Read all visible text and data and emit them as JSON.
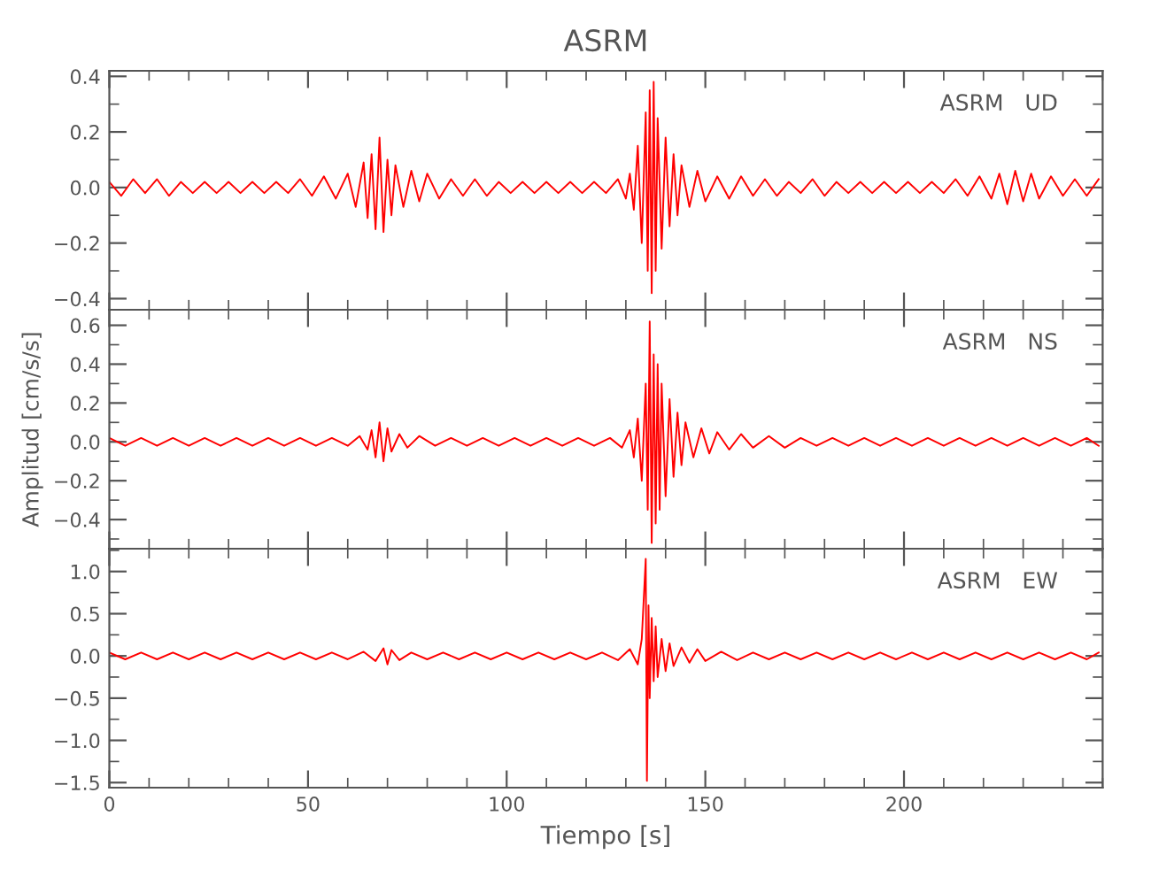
{
  "chart_data": [
    {
      "type": "line",
      "title": "ASRM",
      "annotations": [
        "ASRM   UD"
      ],
      "xlim": [
        0,
        250
      ],
      "xticks": [
        0,
        50,
        100,
        150,
        200
      ],
      "ylim": [
        -0.44,
        0.42
      ],
      "yticks": [
        -0.4,
        -0.2,
        {
          "value": 0,
          "label": "0.0"
        },
        0.2,
        0.4
      ],
      "tick_labels": "y",
      "series": [
        {
          "color": "#ff0000",
          "x": [
            0,
            3,
            6,
            9,
            12,
            15,
            18,
            21,
            24,
            27,
            30,
            33,
            36,
            39,
            42,
            45,
            48,
            51,
            54,
            57,
            60,
            62,
            64,
            65,
            66,
            67,
            68,
            69,
            70,
            71,
            72,
            74,
            76,
            78,
            80,
            83,
            86,
            89,
            92,
            95,
            98,
            101,
            104,
            107,
            110,
            113,
            116,
            119,
            122,
            125,
            128,
            130,
            131,
            132,
            133,
            134,
            135,
            135.5,
            136,
            136.5,
            137,
            137.5,
            138,
            139,
            140,
            141,
            142,
            143,
            144,
            146,
            148,
            150,
            153,
            156,
            159,
            162,
            165,
            168,
            171,
            174,
            177,
            180,
            183,
            186,
            189,
            192,
            195,
            198,
            201,
            204,
            207,
            210,
            213,
            216,
            219,
            222,
            224,
            226,
            228,
            230,
            232,
            234,
            237,
            240,
            243,
            246,
            249
          ],
          "values": [
            0.02,
            -0.03,
            0.03,
            -0.02,
            0.03,
            -0.03,
            0.02,
            -0.02,
            0.02,
            -0.02,
            0.02,
            -0.02,
            0.02,
            -0.02,
            0.02,
            -0.02,
            0.03,
            -0.03,
            0.04,
            -0.04,
            0.05,
            -0.07,
            0.09,
            -0.11,
            0.12,
            -0.15,
            0.18,
            -0.16,
            0.1,
            -0.1,
            0.08,
            -0.07,
            0.06,
            -0.05,
            0.05,
            -0.04,
            0.03,
            -0.03,
            0.03,
            -0.03,
            0.02,
            -0.02,
            0.02,
            -0.02,
            0.02,
            -0.02,
            0.02,
            -0.02,
            0.02,
            -0.02,
            0.03,
            -0.04,
            0.05,
            -0.08,
            0.15,
            -0.2,
            0.27,
            -0.3,
            0.35,
            -0.38,
            0.38,
            -0.3,
            0.25,
            -0.22,
            0.18,
            -0.14,
            0.12,
            -0.1,
            0.08,
            -0.07,
            0.06,
            -0.05,
            0.04,
            -0.04,
            0.04,
            -0.03,
            0.03,
            -0.03,
            0.02,
            -0.02,
            0.03,
            -0.03,
            0.02,
            -0.02,
            0.02,
            -0.02,
            0.02,
            -0.02,
            0.02,
            -0.02,
            0.02,
            -0.02,
            0.03,
            -0.03,
            0.04,
            -0.04,
            0.05,
            -0.06,
            0.06,
            -0.05,
            0.05,
            -0.04,
            0.04,
            -0.03,
            0.03,
            -0.03,
            0.03
          ]
        }
      ]
    },
    {
      "type": "line",
      "ylabel": "Amplitud [cm/s/s]",
      "annotations": [
        "ASRM   NS"
      ],
      "xlim": [
        0,
        250
      ],
      "xticks": [
        0,
        50,
        100,
        150,
        200
      ],
      "ylim": [
        -0.55,
        0.68
      ],
      "yticks": [
        -0.4,
        -0.2,
        {
          "value": 0,
          "label": "0.0"
        },
        0.2,
        0.4,
        0.6
      ],
      "tick_labels": "y",
      "series": [
        {
          "color": "#ff0000",
          "x": [
            0,
            4,
            8,
            12,
            16,
            20,
            24,
            28,
            32,
            36,
            40,
            44,
            48,
            52,
            56,
            60,
            63,
            65,
            66,
            67,
            68,
            69,
            70,
            71,
            73,
            75,
            78,
            82,
            86,
            90,
            94,
            98,
            102,
            106,
            110,
            114,
            118,
            122,
            126,
            129,
            131,
            132,
            133,
            134,
            135,
            135.5,
            136,
            136.5,
            137,
            137.5,
            138,
            138.5,
            139,
            140,
            141,
            142,
            143,
            144,
            145,
            147,
            149,
            151,
            153,
            156,
            159,
            162,
            166,
            170,
            174,
            178,
            182,
            186,
            190,
            194,
            198,
            202,
            206,
            210,
            214,
            218,
            222,
            226,
            230,
            234,
            238,
            242,
            246,
            249
          ],
          "values": [
            0.02,
            -0.02,
            0.02,
            -0.02,
            0.02,
            -0.02,
            0.02,
            -0.02,
            0.02,
            -0.02,
            0.02,
            -0.02,
            0.02,
            -0.02,
            0.02,
            -0.02,
            0.03,
            -0.04,
            0.06,
            -0.08,
            0.1,
            -0.1,
            0.07,
            -0.05,
            0.04,
            -0.03,
            0.03,
            -0.02,
            0.02,
            -0.02,
            0.02,
            -0.02,
            0.02,
            -0.02,
            0.02,
            -0.02,
            0.02,
            -0.02,
            0.02,
            -0.03,
            0.06,
            -0.08,
            0.12,
            -0.2,
            0.3,
            -0.35,
            0.62,
            -0.52,
            0.45,
            -0.42,
            0.4,
            -0.35,
            0.3,
            -0.28,
            0.22,
            -0.18,
            0.15,
            -0.12,
            0.1,
            -0.08,
            0.07,
            -0.06,
            0.05,
            -0.04,
            0.04,
            -0.03,
            0.03,
            -0.03,
            0.02,
            -0.02,
            0.02,
            -0.02,
            0.02,
            -0.02,
            0.02,
            -0.02,
            0.02,
            -0.02,
            0.02,
            -0.02,
            0.02,
            -0.02,
            0.02,
            -0.02,
            0.02,
            -0.02,
            0.02,
            -0.02
          ]
        }
      ]
    },
    {
      "type": "line",
      "xlabel": "Tiempo [s]",
      "annotations": [
        "ASRM   EW"
      ],
      "xlim": [
        0,
        250
      ],
      "xticks": [
        0,
        50,
        100,
        150,
        200
      ],
      "ylim": [
        -1.56,
        1.27
      ],
      "yticks": [
        -1.5,
        {
          "value": -1,
          "label": "−1.0"
        },
        -0.5,
        {
          "value": 0,
          "label": "0.0"
        },
        0.5,
        {
          "value": 1,
          "label": "1.0"
        }
      ],
      "series": [
        {
          "color": "#ff0000",
          "x": [
            0,
            4,
            8,
            12,
            16,
            20,
            24,
            28,
            32,
            36,
            40,
            44,
            48,
            52,
            56,
            60,
            64,
            67,
            69,
            70,
            71,
            73,
            76,
            80,
            84,
            88,
            92,
            96,
            100,
            104,
            108,
            112,
            116,
            120,
            124,
            128,
            131,
            133,
            134,
            135,
            135.3,
            135.7,
            136,
            136.5,
            137,
            137.5,
            138,
            139,
            140,
            141,
            142,
            144,
            146,
            148,
            150,
            154,
            158,
            162,
            166,
            170,
            174,
            178,
            182,
            186,
            190,
            194,
            198,
            202,
            206,
            210,
            214,
            218,
            222,
            226,
            230,
            234,
            238,
            242,
            246,
            249
          ],
          "values": [
            0.04,
            -0.04,
            0.04,
            -0.04,
            0.04,
            -0.04,
            0.04,
            -0.04,
            0.04,
            -0.04,
            0.04,
            -0.04,
            0.04,
            -0.04,
            0.04,
            -0.04,
            0.05,
            -0.06,
            0.09,
            -0.1,
            0.07,
            -0.05,
            0.04,
            -0.04,
            0.04,
            -0.04,
            0.04,
            -0.04,
            0.04,
            -0.04,
            0.04,
            -0.04,
            0.04,
            -0.04,
            0.04,
            -0.05,
            0.08,
            -0.1,
            0.2,
            1.15,
            -1.48,
            0.6,
            -0.5,
            0.45,
            -0.3,
            0.35,
            -0.25,
            0.2,
            -0.18,
            0.15,
            -0.12,
            0.1,
            -0.08,
            0.08,
            -0.06,
            0.05,
            -0.05,
            0.04,
            -0.04,
            0.04,
            -0.04,
            0.04,
            -0.04,
            0.04,
            -0.04,
            0.04,
            -0.04,
            0.04,
            -0.04,
            0.04,
            -0.04,
            0.04,
            -0.04,
            0.04,
            -0.04,
            0.04,
            -0.04,
            0.04,
            -0.04,
            0.04
          ]
        }
      ]
    }
  ]
}
